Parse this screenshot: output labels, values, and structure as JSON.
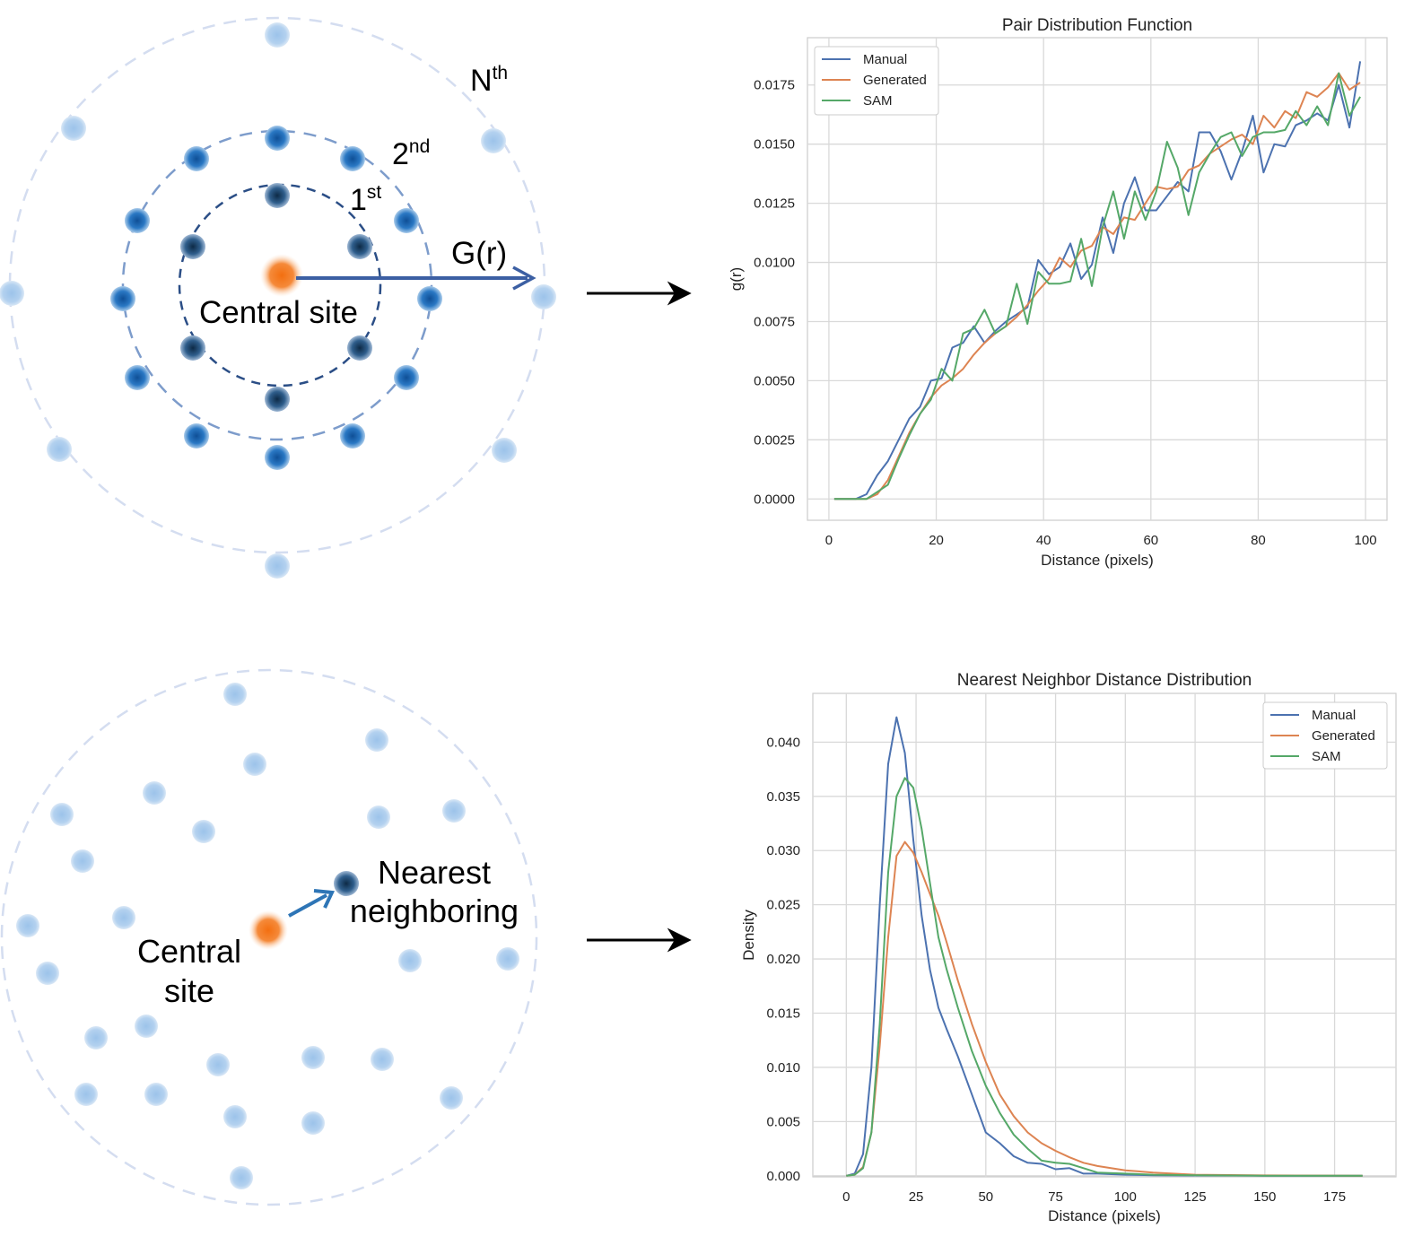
{
  "diagram_top": {
    "rings": [
      "1",
      "2",
      "N"
    ],
    "ring_suffixes": [
      "st",
      "nd",
      "th"
    ],
    "arrow_label": "G(r)",
    "central_label": "Central site",
    "colors": {
      "central": "#f07f2a",
      "ring1": "#1f4e79",
      "ring2": "#2b6fb3",
      "ringN": "#a9c8ea"
    }
  },
  "diagram_bottom": {
    "neighbor_label_lines": [
      "Nearest",
      "neighboring"
    ],
    "central_label_lines": [
      "Central",
      "site"
    ],
    "colors": {
      "central": "#f07f2a",
      "neighbor": "#1f4e79",
      "points": "#a9c8ea",
      "arrow": "#2e75b6"
    }
  },
  "chart_data": [
    {
      "type": "line",
      "title": "Pair Distribution Function",
      "xlabel": "Distance (pixels)",
      "ylabel": "g(r)",
      "xlim": [
        -4,
        104
      ],
      "ylim": [
        -0.0009,
        0.0195
      ],
      "xticks": [
        0,
        20,
        40,
        60,
        80,
        100
      ],
      "yticks": [
        0.0,
        0.0025,
        0.005,
        0.0075,
        0.01,
        0.0125,
        0.015,
        0.0175
      ],
      "ytick_labels": [
        "0.0000",
        "0.0025",
        "0.0050",
        "0.0075",
        "0.0100",
        "0.0125",
        "0.0150",
        "0.0175"
      ],
      "xtick_labels": [
        "0",
        "20",
        "40",
        "60",
        "80",
        "100"
      ],
      "grid": true,
      "legend": "top-left",
      "series": [
        {
          "name": "Manual",
          "color": "#4c72b0",
          "x": [
            1,
            3,
            5,
            7,
            9,
            11,
            13,
            15,
            17,
            19,
            21,
            23,
            25,
            27,
            29,
            31,
            33,
            35,
            37,
            39,
            41,
            43,
            45,
            47,
            49,
            51,
            53,
            55,
            57,
            59,
            61,
            63,
            65,
            67,
            69,
            71,
            73,
            75,
            77,
            79,
            81,
            83,
            85,
            87,
            89,
            91,
            93,
            95,
            97,
            99
          ],
          "y": [
            0,
            0,
            0,
            0.0002,
            0.001,
            0.0016,
            0.0025,
            0.0034,
            0.0039,
            0.005,
            0.0051,
            0.0064,
            0.0066,
            0.0073,
            0.0066,
            0.0071,
            0.0075,
            0.0078,
            0.0081,
            0.0101,
            0.0095,
            0.0098,
            0.0108,
            0.0093,
            0.0099,
            0.0119,
            0.0104,
            0.0125,
            0.0136,
            0.0122,
            0.0122,
            0.0128,
            0.0134,
            0.013,
            0.0155,
            0.0155,
            0.0147,
            0.0135,
            0.0147,
            0.0162,
            0.0138,
            0.015,
            0.0149,
            0.0158,
            0.016,
            0.0163,
            0.016,
            0.0175,
            0.0157,
            0.0185
          ]
        },
        {
          "name": "Generated",
          "color": "#dd8452",
          "x": [
            1,
            3,
            5,
            7,
            9,
            11,
            13,
            15,
            17,
            19,
            21,
            23,
            25,
            27,
            29,
            31,
            33,
            35,
            37,
            39,
            41,
            43,
            45,
            47,
            49,
            51,
            53,
            55,
            57,
            59,
            61,
            63,
            65,
            67,
            69,
            71,
            73,
            75,
            77,
            79,
            81,
            83,
            85,
            87,
            89,
            91,
            93,
            95,
            97,
            99
          ],
          "y": [
            0,
            0,
            0,
            0,
            0.0002,
            0.0008,
            0.0018,
            0.0028,
            0.0036,
            0.0043,
            0.0048,
            0.0051,
            0.0055,
            0.0061,
            0.0066,
            0.007,
            0.0073,
            0.0077,
            0.0082,
            0.0088,
            0.0093,
            0.0102,
            0.0098,
            0.0105,
            0.0107,
            0.0115,
            0.0112,
            0.0119,
            0.0118,
            0.0125,
            0.0132,
            0.0131,
            0.0132,
            0.0139,
            0.0141,
            0.0146,
            0.0149,
            0.0152,
            0.0154,
            0.015,
            0.0162,
            0.0157,
            0.0164,
            0.0161,
            0.0172,
            0.017,
            0.0174,
            0.018,
            0.0173,
            0.0176
          ]
        },
        {
          "name": "SAM",
          "color": "#55a868",
          "x": [
            1,
            3,
            5,
            7,
            9,
            11,
            13,
            15,
            17,
            19,
            21,
            23,
            25,
            27,
            29,
            31,
            33,
            35,
            37,
            39,
            41,
            43,
            45,
            47,
            49,
            51,
            53,
            55,
            57,
            59,
            61,
            63,
            65,
            67,
            69,
            71,
            73,
            75,
            77,
            79,
            81,
            83,
            85,
            87,
            89,
            91,
            93,
            95,
            97,
            99
          ],
          "y": [
            0,
            0,
            0,
            0,
            0.0003,
            0.0006,
            0.0017,
            0.0027,
            0.0036,
            0.0042,
            0.0055,
            0.005,
            0.007,
            0.0072,
            0.008,
            0.007,
            0.0073,
            0.0091,
            0.0074,
            0.0096,
            0.0091,
            0.0091,
            0.0092,
            0.011,
            0.009,
            0.0115,
            0.013,
            0.011,
            0.013,
            0.0118,
            0.013,
            0.0151,
            0.014,
            0.012,
            0.0138,
            0.0146,
            0.0153,
            0.0155,
            0.0145,
            0.0153,
            0.0155,
            0.0155,
            0.0156,
            0.0164,
            0.0158,
            0.0166,
            0.0158,
            0.018,
            0.0162,
            0.017
          ]
        }
      ]
    },
    {
      "type": "line",
      "title": "Nearest Neighbor Distance Distribution",
      "xlabel": "Distance (pixels)",
      "ylabel": "Density",
      "xlim": [
        -12,
        197
      ],
      "ylim": [
        -0.0001,
        0.0445
      ],
      "xticks": [
        0,
        25,
        50,
        75,
        100,
        125,
        150,
        175
      ],
      "xtick_labels": [
        "0",
        "25",
        "50",
        "75",
        "100",
        "125",
        "150",
        "175"
      ],
      "yticks": [
        0.0,
        0.005,
        0.01,
        0.015,
        0.02,
        0.025,
        0.03,
        0.035,
        0.04
      ],
      "ytick_labels": [
        "0.000",
        "0.005",
        "0.010",
        "0.015",
        "0.020",
        "0.025",
        "0.030",
        "0.035",
        "0.040"
      ],
      "grid": true,
      "legend": "top-right",
      "series": [
        {
          "name": "Manual",
          "color": "#4c72b0",
          "x": [
            0,
            3,
            6,
            9,
            12,
            15,
            18,
            21,
            24,
            27,
            30,
            33,
            36,
            40,
            45,
            50,
            55,
            60,
            65,
            70,
            75,
            80,
            85,
            90,
            100,
            110,
            125,
            150,
            185
          ],
          "y": [
            0,
            0.0002,
            0.002,
            0.01,
            0.025,
            0.038,
            0.0423,
            0.039,
            0.031,
            0.024,
            0.019,
            0.0155,
            0.0135,
            0.011,
            0.0075,
            0.004,
            0.003,
            0.0018,
            0.0012,
            0.0011,
            0.0006,
            0.0007,
            0.0002,
            0.0002,
            0.0001,
            5e-05,
            2e-05,
            1e-05,
            0
          ]
        },
        {
          "name": "Generated",
          "color": "#dd8452",
          "x": [
            0,
            3,
            6,
            9,
            12,
            15,
            18,
            21,
            24,
            27,
            30,
            33,
            36,
            40,
            45,
            50,
            55,
            60,
            65,
            70,
            75,
            80,
            85,
            90,
            100,
            110,
            125,
            150,
            185
          ],
          "y": [
            0,
            0.0001,
            0.0008,
            0.004,
            0.012,
            0.022,
            0.0295,
            0.0308,
            0.0298,
            0.028,
            0.026,
            0.024,
            0.0215,
            0.018,
            0.014,
            0.0105,
            0.0075,
            0.0055,
            0.004,
            0.003,
            0.0023,
            0.0017,
            0.0012,
            0.0009,
            0.0005,
            0.0003,
            0.0001,
            3e-05,
            0
          ]
        },
        {
          "name": "SAM",
          "color": "#55a868",
          "x": [
            0,
            3,
            6,
            9,
            12,
            15,
            18,
            21,
            24,
            27,
            30,
            33,
            36,
            40,
            45,
            50,
            55,
            60,
            65,
            70,
            75,
            80,
            85,
            90,
            100,
            110,
            125,
            150,
            185
          ],
          "y": [
            0,
            0.0001,
            0.0007,
            0.004,
            0.014,
            0.028,
            0.035,
            0.0367,
            0.0358,
            0.032,
            0.027,
            0.022,
            0.019,
            0.0155,
            0.0115,
            0.0083,
            0.0058,
            0.0038,
            0.0025,
            0.0014,
            0.0012,
            0.0011,
            0.0007,
            0.0003,
            0.0002,
            0.0001,
            5e-05,
            1e-05,
            0
          ]
        }
      ]
    }
  ]
}
